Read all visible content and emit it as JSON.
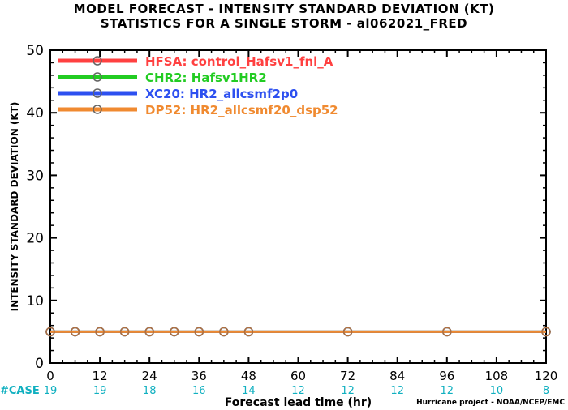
{
  "chart_data": {
    "type": "line",
    "title": "MODEL FORECAST - INTENSITY STANDARD DEVIATION (KT)",
    "subtitle": "STATISTICS FOR A SINGLE STORM - al062021_FRED",
    "xlabel": "Forecast lead time (hr)",
    "ylabel": "INTENSITY STANDARD DEVIATION (KT)",
    "xlim": [
      0,
      120
    ],
    "ylim": [
      0,
      50
    ],
    "x_ticks": [
      "0",
      "12",
      "24",
      "36",
      "48",
      "60",
      "72",
      "84",
      "96",
      "108",
      "120"
    ],
    "y_ticks": [
      "0",
      "10",
      "20",
      "30",
      "40",
      "50"
    ],
    "x": [
      0,
      6,
      12,
      18,
      24,
      30,
      36,
      42,
      48,
      72,
      96,
      120
    ],
    "series": [
      {
        "name": "HFSA: control_Hafsv1_fnl_A",
        "color": "#ff4040",
        "values": [
          5,
          5,
          5,
          5,
          5,
          5,
          5,
          5,
          5,
          5,
          5,
          5
        ]
      },
      {
        "name": "CHR2: Hafsv1HR2",
        "color": "#22cc22",
        "values": [
          5,
          5,
          5,
          5,
          5,
          5,
          5,
          5,
          5,
          5,
          5,
          5
        ]
      },
      {
        "name": "XC20: HR2_allcsmf2p0",
        "color": "#2d50f0",
        "values": [
          5,
          5,
          5,
          5,
          5,
          5,
          5,
          5,
          5,
          5,
          5,
          5
        ]
      },
      {
        "name": "DP52: HR2_allcsmf20_dsp52",
        "color": "#f08a30",
        "values": [
          5,
          5,
          5,
          5,
          5,
          5,
          5,
          5,
          5,
          5,
          5,
          5
        ]
      }
    ],
    "case_label": "#CASE",
    "case_counts": [
      "19",
      "19",
      "18",
      "16",
      "14",
      "12",
      "12",
      "12",
      "12",
      "10",
      "8"
    ],
    "case_color": "#10b0c0",
    "legend_position": "top-left",
    "grid": false
  },
  "credit": "Hurricane project - NOAA/NCEP/EMC"
}
